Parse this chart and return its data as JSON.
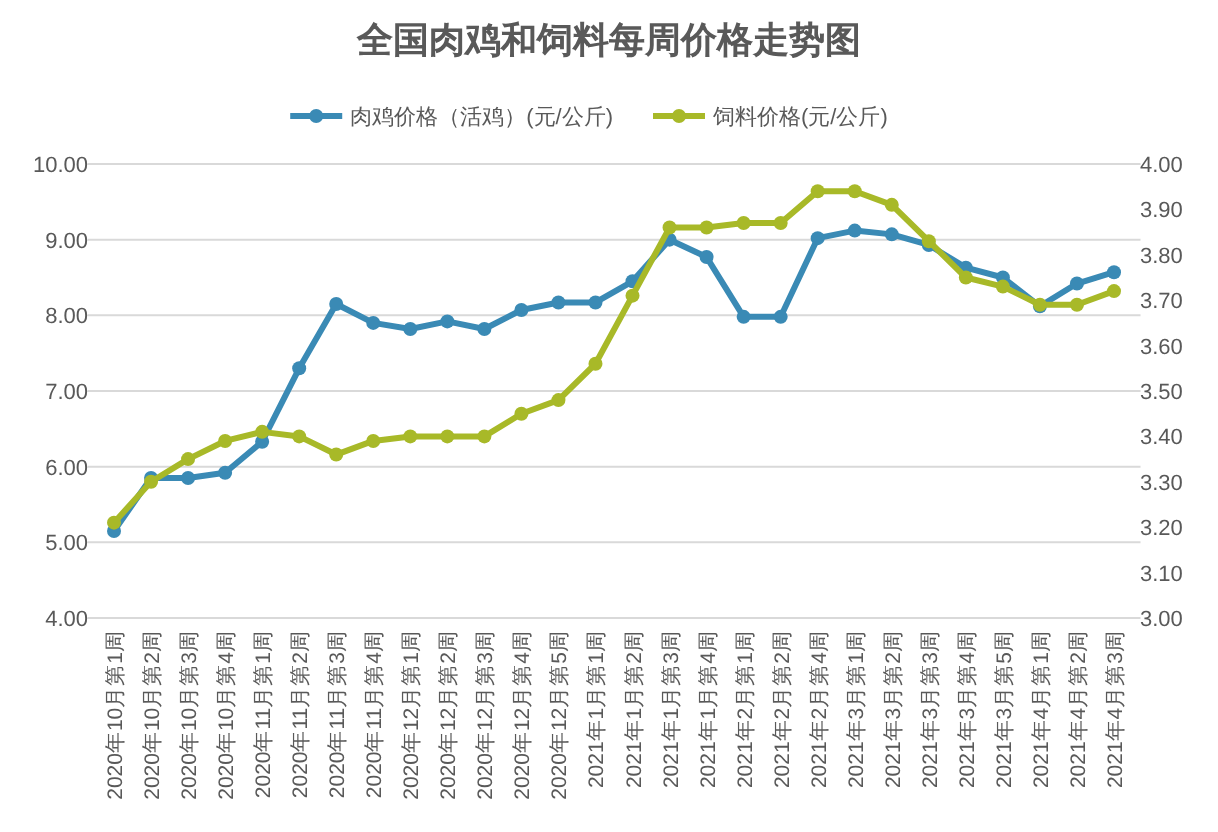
{
  "chart_data": {
    "type": "line",
    "title": "全国肉鸡和饲料每周价格走势图",
    "categories": [
      "2020年10月第1周",
      "2020年10月第2周",
      "2020年10月第3周",
      "2020年10月第4周",
      "2020年11月第1周",
      "2020年11月第2周",
      "2020年11月第3周",
      "2020年11月第4周",
      "2020年12月第1周",
      "2020年12月第2周",
      "2020年12月第3周",
      "2020年12月第4周",
      "2020年12月第5周",
      "2021年1月第1周",
      "2021年1月第2周",
      "2021年1月第3周",
      "2021年1月第4周",
      "2021年2月第1周",
      "2021年2月第2周",
      "2021年2月第4周",
      "2021年3月第1周",
      "2021年3月第2周",
      "2021年3月第3周",
      "2021年3月第4周",
      "2021年3月第5周",
      "2021年4月第1周",
      "2021年4月第2周",
      "2021年4月第3周"
    ],
    "series": [
      {
        "name": "肉鸡价格（活鸡）(元/公斤)",
        "color": "#3a8ab5",
        "values": [
          5.15,
          5.85,
          5.85,
          5.92,
          6.33,
          7.3,
          8.15,
          7.9,
          7.82,
          7.92,
          7.82,
          8.07,
          8.17,
          8.17,
          8.45,
          9.0,
          8.77,
          7.98,
          7.98,
          9.02,
          9.12,
          9.07,
          8.93,
          8.63,
          8.5,
          8.12,
          8.42,
          8.57
        ]
      },
      {
        "name": "饲料价格(元/公斤)",
        "color": "#a8b928",
        "axis": "y2",
        "values": [
          3.21,
          3.3,
          3.35,
          3.39,
          3.41,
          3.4,
          3.36,
          3.39,
          3.4,
          3.4,
          3.4,
          3.45,
          3.48,
          3.56,
          3.71,
          3.86,
          3.86,
          3.87,
          3.87,
          3.94,
          3.94,
          3.91,
          3.83,
          3.75,
          3.73,
          3.69,
          3.69,
          3.72
        ]
      }
    ],
    "ylim": [
      4,
      10
    ],
    "yticks": [
      {
        "value": 4,
        "label": "4.00"
      },
      {
        "value": 5,
        "label": "5.00"
      },
      {
        "value": 6,
        "label": "6.00"
      },
      {
        "value": 7,
        "label": "7.00"
      },
      {
        "value": 8,
        "label": "8.00"
      },
      {
        "value": 9,
        "label": "9.00"
      },
      {
        "value": 10,
        "label": "10.00"
      }
    ],
    "y2lim": [
      3,
      4
    ],
    "y2ticks": [
      {
        "value": 3,
        "label": "3.00"
      },
      {
        "value": 3.1,
        "label": "3.10"
      },
      {
        "value": 3.2,
        "label": "3.20"
      },
      {
        "value": 3.3,
        "label": "3.30"
      },
      {
        "value": 3.4,
        "label": "3.40"
      },
      {
        "value": 3.5,
        "label": "3.50"
      },
      {
        "value": 3.6,
        "label": "3.60"
      },
      {
        "value": 3.7,
        "label": "3.70"
      },
      {
        "value": 3.8,
        "label": "3.80"
      },
      {
        "value": 3.9,
        "label": "3.90"
      },
      {
        "value": 4,
        "label": "4.00"
      }
    ],
    "grid": "y",
    "legend": "top",
    "marker": "circle",
    "line_style": "solid"
  }
}
